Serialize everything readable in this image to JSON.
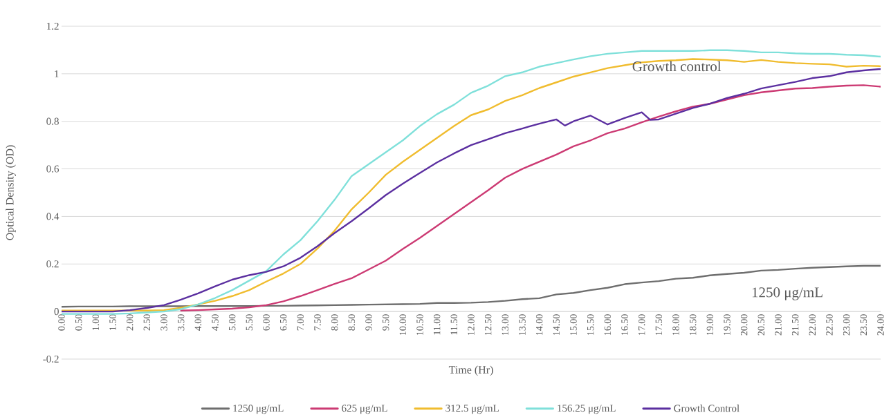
{
  "chart_data": {
    "type": "line",
    "xlabel": "Time (Hr)",
    "ylabel": "Optical Density (OD)",
    "x": [
      0,
      0.5,
      1,
      1.5,
      2,
      2.5,
      3,
      3.5,
      4,
      4.5,
      5,
      5.5,
      6,
      6.5,
      7,
      7.5,
      8,
      8.5,
      9,
      9.5,
      10,
      10.5,
      11,
      11.5,
      12,
      12.5,
      13,
      13.5,
      14,
      14.5,
      15,
      15.5,
      16,
      16.5,
      17,
      17.5,
      18,
      18.5,
      19,
      19.5,
      20,
      20.5,
      21,
      21.5,
      22,
      22.5,
      23,
      23.5,
      24
    ],
    "xlim": [
      0,
      24
    ],
    "xticks": [
      {
        "value": 0,
        "label": "0.00"
      },
      {
        "value": 0.5,
        "label": "0.50"
      },
      {
        "value": 1,
        "label": "1.00"
      },
      {
        "value": 1.5,
        "label": "1.50"
      },
      {
        "value": 2,
        "label": "2.00"
      },
      {
        "value": 2.5,
        "label": "2.50"
      },
      {
        "value": 3,
        "label": "3.00"
      },
      {
        "value": 3.5,
        "label": "3.50"
      },
      {
        "value": 4,
        "label": "4.00"
      },
      {
        "value": 4.5,
        "label": "4.50"
      },
      {
        "value": 5,
        "label": "5.00"
      },
      {
        "value": 5.5,
        "label": "5.50"
      },
      {
        "value": 6,
        "label": "6.00"
      },
      {
        "value": 6.5,
        "label": "6.50"
      },
      {
        "value": 7,
        "label": "7.00"
      },
      {
        "value": 7.5,
        "label": "7.50"
      },
      {
        "value": 8,
        "label": "8.00"
      },
      {
        "value": 8.5,
        "label": "8.50"
      },
      {
        "value": 9,
        "label": "9.00"
      },
      {
        "value": 9.5,
        "label": "9.50"
      },
      {
        "value": 10,
        "label": "10.00"
      },
      {
        "value": 10.5,
        "label": "10.50"
      },
      {
        "value": 11,
        "label": "11.00"
      },
      {
        "value": 11.5,
        "label": "11.50"
      },
      {
        "value": 12,
        "label": "12.00"
      },
      {
        "value": 12.5,
        "label": "12.50"
      },
      {
        "value": 13,
        "label": "13.00"
      },
      {
        "value": 13.5,
        "label": "13.50"
      },
      {
        "value": 14,
        "label": "14.00"
      },
      {
        "value": 14.5,
        "label": "14.50"
      },
      {
        "value": 15,
        "label": "15.00"
      },
      {
        "value": 15.5,
        "label": "15.50"
      },
      {
        "value": 16,
        "label": "16.00"
      },
      {
        "value": 16.5,
        "label": "16.50"
      },
      {
        "value": 17,
        "label": "17.00"
      },
      {
        "value": 17.5,
        "label": "17.50"
      },
      {
        "value": 18,
        "label": "18.00"
      },
      {
        "value": 18.5,
        "label": "18.50"
      },
      {
        "value": 19,
        "label": "19.00"
      },
      {
        "value": 19.5,
        "label": "19.50"
      },
      {
        "value": 20,
        "label": "20.00"
      },
      {
        "value": 20.5,
        "label": "20.50"
      },
      {
        "value": 21,
        "label": "21.00"
      },
      {
        "value": 21.5,
        "label": "21.50"
      },
      {
        "value": 22,
        "label": "22.00"
      },
      {
        "value": 22.5,
        "label": "22.50"
      },
      {
        "value": 23,
        "label": "23.00"
      },
      {
        "value": 23.5,
        "label": "23.50"
      },
      {
        "value": 24,
        "label": "24.00"
      }
    ],
    "ylim": [
      -0.2,
      1.2
    ],
    "yticks": [
      -0.2,
      0,
      0.2,
      0.4,
      0.6,
      0.8,
      1,
      1.2
    ],
    "grid": "y",
    "legend": "bottom",
    "series": [
      {
        "name": "1250 μg/mL",
        "color": "#6e6e6e",
        "values": [
          0.02,
          0.021,
          0.021,
          0.021,
          0.022,
          0.022,
          0.022,
          0.022,
          0.023,
          0.023,
          0.023,
          0.023,
          0.024,
          0.024,
          0.025,
          0.026,
          0.027,
          0.028,
          0.029,
          0.03,
          0.031,
          0.032,
          0.036,
          0.036,
          0.037,
          0.04,
          0.045,
          0.052,
          0.056,
          0.072,
          0.078,
          0.09,
          0.1,
          0.115,
          0.122,
          0.128,
          0.138,
          0.142,
          0.152,
          0.158,
          0.163,
          0.172,
          0.175,
          0.18,
          0.184,
          0.187,
          0.19,
          0.192,
          0.192
        ]
      },
      {
        "name": "625 μg/mL",
        "color": "#cc3a73",
        "values": [
          null,
          null,
          null,
          null,
          null,
          null,
          null,
          0.004,
          0.006,
          0.009,
          0.012,
          0.018,
          0.027,
          0.043,
          0.065,
          0.09,
          0.116,
          0.14,
          0.177,
          0.214,
          0.263,
          0.31,
          0.36,
          0.41,
          0.46,
          0.51,
          0.563,
          0.6,
          0.63,
          0.66,
          0.695,
          0.72,
          0.75,
          0.77,
          0.796,
          0.82,
          0.842,
          0.862,
          0.874,
          0.892,
          0.91,
          0.922,
          0.93,
          0.938,
          0.94,
          0.946,
          0.95,
          0.952,
          0.946
        ]
      },
      {
        "name": "312.5 μg/mL",
        "color": "#f0bc2e",
        "values": [
          0.004,
          0.004,
          0.004,
          0.004,
          0.004,
          0.004,
          0.006,
          0.016,
          0.03,
          0.045,
          0.065,
          0.09,
          0.126,
          0.16,
          0.2,
          0.265,
          0.34,
          0.43,
          0.5,
          0.575,
          0.63,
          0.68,
          0.73,
          0.78,
          0.826,
          0.85,
          0.886,
          0.91,
          0.94,
          0.964,
          0.988,
          1.006,
          1.024,
          1.036,
          1.048,
          1.054,
          1.057,
          1.062,
          1.06,
          1.057,
          1.05,
          1.058,
          1.05,
          1.045,
          1.042,
          1.04,
          1.03,
          1.034,
          1.032
        ]
      },
      {
        "name": "156.25 μg/mL",
        "color": "#7fe0da",
        "values": [
          -0.01,
          -0.01,
          -0.01,
          -0.01,
          -0.008,
          -0.004,
          0,
          0.01,
          0.03,
          0.057,
          0.09,
          0.13,
          0.17,
          0.24,
          0.3,
          0.38,
          0.47,
          0.57,
          0.62,
          0.67,
          0.72,
          0.78,
          0.83,
          0.87,
          0.92,
          0.95,
          0.99,
          1.006,
          1.03,
          1.045,
          1.06,
          1.074,
          1.084,
          1.09,
          1.096,
          1.096,
          1.096,
          1.096,
          1.099,
          1.099,
          1.096,
          1.09,
          1.09,
          1.086,
          1.084,
          1.084,
          1.08,
          1.078,
          1.072
        ]
      },
      {
        "name": "Growth Control",
        "color": "#5b2fa0",
        "x": [
          0,
          0.5,
          1,
          1.5,
          2,
          2.5,
          3,
          3.5,
          4,
          4.5,
          5,
          5.5,
          6,
          6.5,
          7,
          7.5,
          8,
          8.5,
          9,
          9.5,
          10,
          10.5,
          11,
          11.5,
          12,
          12.5,
          13,
          13.5,
          14,
          14.5,
          14.75,
          15,
          15.5,
          16,
          16.5,
          17,
          17.25,
          17.5,
          18,
          18.5,
          19,
          19.5,
          20,
          20.5,
          21,
          21.5,
          22,
          22.5,
          23,
          23.5,
          24
        ],
        "values": [
          0,
          0,
          0,
          0,
          0.006,
          0.015,
          0.027,
          0.05,
          0.076,
          0.106,
          0.134,
          0.153,
          0.167,
          0.19,
          0.226,
          0.275,
          0.33,
          0.38,
          0.434,
          0.49,
          0.538,
          0.583,
          0.627,
          0.665,
          0.7,
          0.725,
          0.75,
          0.77,
          0.79,
          0.808,
          0.782,
          0.8,
          0.824,
          0.787,
          0.814,
          0.838,
          0.806,
          0.808,
          0.832,
          0.856,
          0.874,
          0.898,
          0.916,
          0.938,
          0.952,
          0.966,
          0.982,
          0.99,
          1.006,
          1.014,
          1.02
        ]
      }
    ],
    "annotations": [
      "Growth control",
      "1250 μg/mL"
    ]
  }
}
